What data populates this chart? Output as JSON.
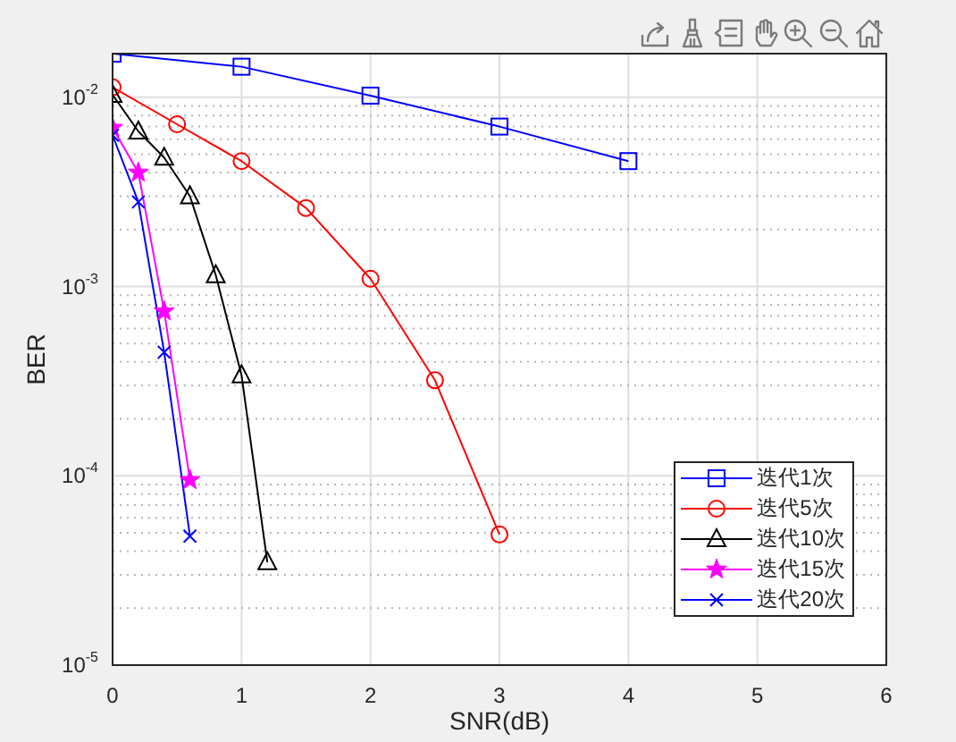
{
  "chart_data": {
    "type": "line",
    "xlabel": "SNR(dB)",
    "ylabel": "BER",
    "xlim": [
      0,
      6
    ],
    "xticks": [
      0,
      1,
      2,
      3,
      4,
      5,
      6
    ],
    "ylim": [
      1e-05,
      0.017
    ],
    "yticks": [
      {
        "value": 1e-05,
        "label": "10$^{-5}$"
      },
      {
        "value": 0.0001,
        "label": "10$^{-4}$"
      },
      {
        "value": 0.001,
        "label": "10$^{-3}$"
      },
      {
        "value": 0.01,
        "label": "10$^{-2}$"
      }
    ],
    "log": "y",
    "grid": true,
    "legend": "bottom right",
    "line_style": "solid",
    "series": [
      {
        "name": "迭代1次",
        "color": "#0000ff",
        "marker": "square",
        "x": [
          0,
          1,
          2,
          3,
          4
        ],
        "values": [
          0.017,
          0.0145,
          0.0102,
          0.007,
          0.0046
        ]
      },
      {
        "name": "迭代5次",
        "color": "#ff0000",
        "marker": "circle",
        "x": [
          0,
          0.5,
          1,
          1.5,
          2,
          2.5,
          3
        ],
        "values": [
          0.0113,
          0.0072,
          0.0046,
          0.0026,
          0.0011,
          0.00032,
          4.9e-05
        ]
      },
      {
        "name": "迭代10次",
        "color": "#000000",
        "marker": "triangle",
        "x": [
          0,
          0.2,
          0.4,
          0.6,
          0.8,
          1,
          1.2
        ],
        "values": [
          0.0103,
          0.0066,
          0.0048,
          0.003,
          0.00115,
          0.00034,
          3.5e-05
        ]
      },
      {
        "name": "迭代15次",
        "color": "#ff00ff",
        "marker": "star",
        "x": [
          0,
          0.2,
          0.4,
          0.6
        ],
        "values": [
          0.0069,
          0.004,
          0.00074,
          9.5e-05
        ]
      },
      {
        "name": "迭代20次",
        "color": "#0000ff",
        "marker": "cross",
        "x": [
          0,
          0.2,
          0.4,
          0.6
        ],
        "values": [
          0.0063,
          0.0028,
          0.00045,
          4.8e-05
        ]
      }
    ]
  }
}
